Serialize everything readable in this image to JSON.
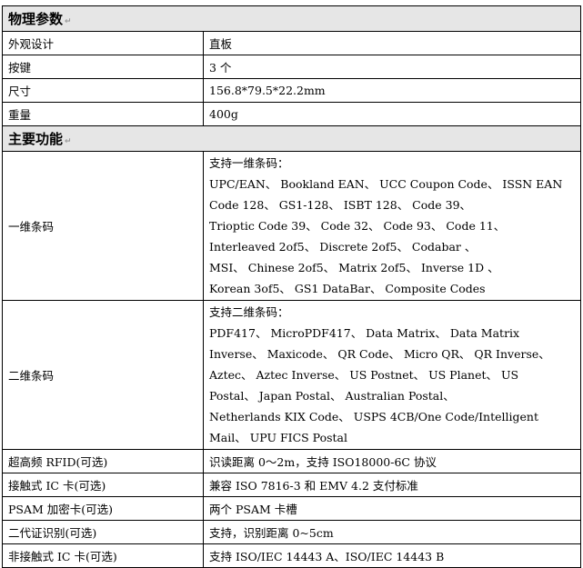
{
  "sections": {
    "physical": "物理参数",
    "functions": "主要功能"
  },
  "physical_rows": [
    {
      "key": "外观设计",
      "value": "直板"
    },
    {
      "key": "按键",
      "value": "3 个"
    },
    {
      "key": "尺寸",
      "value": "156.8*79.5*22.2mm"
    },
    {
      "key": "重量",
      "value": "400g"
    }
  ],
  "barcode_1d": {
    "key": "一维条码",
    "lines": [
      "支持一维条码：",
      "UPC/EAN、 Bookland EAN、 UCC Coupon Code、 ISSN EAN",
      "Code 128、   GS1-128、   ISBT 128、   Code 39、",
      "Trioptic Code 39、  Code 32、  Code 93、  Code 11、",
      "Interleaved 2of5、   Discrete 2of5、   Codabar 、",
      "MSI、  Chinese 2of5、  Matrix 2of5、  Inverse 1D 、",
      "Korean 3of5、  GS1 DataBar、  Composite Codes"
    ]
  },
  "barcode_2d": {
    "key": "二维条码",
    "lines": [
      "支持二维条码：",
      "PDF417、  MicroPDF417、  Data Matrix、   Data Matrix",
      "Inverse、  Maxicode、  QR Code、  Micro QR、 QR Inverse、",
      "Aztec、  Aztec Inverse、 US Postnet、   US Planet、   US",
      "Postal、   Japan Postal、    Australian Postal、",
      "Netherlands KIX Code、  USPS 4CB/One Code/Intelligent",
      "Mail、  UPU FICS Postal"
    ]
  },
  "function_rows": [
    {
      "key": "超高频 RFID(可选)",
      "value": "识读距离 0～2m，支持 ISO18000-6C 协议"
    },
    {
      "key": "接触式 IC 卡(可选)",
      "value": "兼容  ISO 7816-3  和  EMV 4.2 支付标准"
    },
    {
      "key": "PSAM 加密卡(可选)",
      "value": "两个 PSAM 卡槽"
    },
    {
      "key": "二代证识别(可选)",
      "value": "支持，识别距离 0~5cm"
    },
    {
      "key": "非接触式 IC 卡(可选)",
      "value": "支持 ISO/IEC 14443 A、ISO/IEC 14443 B"
    }
  ]
}
